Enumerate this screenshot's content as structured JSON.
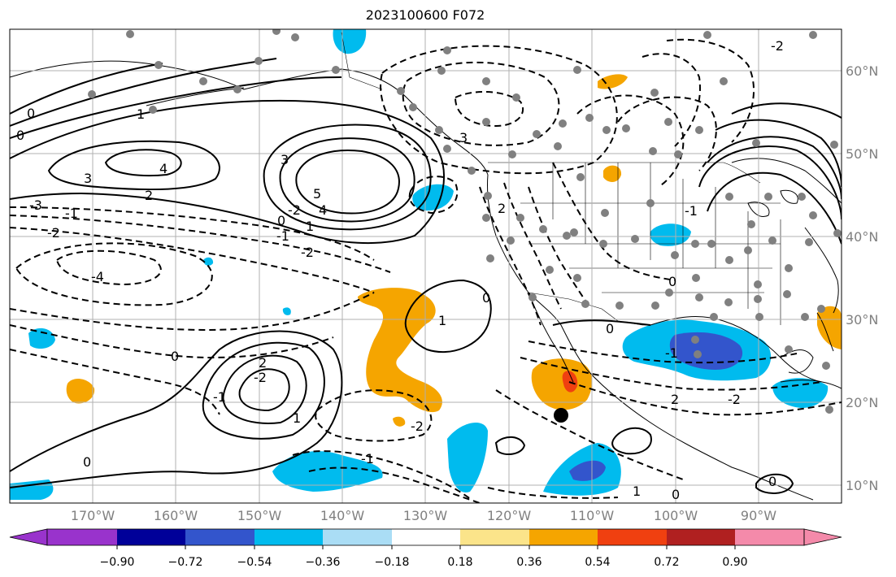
{
  "title": "2023100600 F072",
  "lat_labels": [
    "60°N",
    "50°N",
    "40°N",
    "30°N",
    "20°N",
    "10°N"
  ],
  "lon_labels": [
    "170°W",
    "160°W",
    "150°W",
    "140°W",
    "130°W",
    "120°W",
    "110°W",
    "100°W",
    "90°W"
  ],
  "colorbar": {
    "ticks": [
      "−0.90",
      "−0.72",
      "−0.54",
      "−0.36",
      "−0.18",
      "0.18",
      "0.36",
      "0.54",
      "0.72",
      "0.90"
    ],
    "colors": [
      "#9933cc",
      "#000099",
      "#3355cc",
      "#00bbee",
      "#aaddf5",
      "#ffffff",
      "#fbe48a",
      "#f5a500",
      "#f04010",
      "#b02020",
      "#f48aaa"
    ]
  },
  "contour_labels": [
    "0",
    "1",
    "3",
    "4",
    "-1",
    "-2",
    "-3",
    "-4",
    "0",
    "2",
    "3",
    "5",
    "4",
    "-2",
    "-1",
    "1",
    "0",
    "-2",
    "2",
    "-2",
    "0",
    "-1",
    "1",
    "0",
    "-2",
    "3",
    "2",
    "-1",
    "1",
    "0",
    "-1",
    "0",
    "2",
    "1",
    "0",
    "-2",
    "-1",
    "-2",
    "0",
    "0"
  ],
  "map_colors": {
    "land": "#000000",
    "grid": "#b0b0b0",
    "station": "#808080",
    "storm": "#000000"
  }
}
